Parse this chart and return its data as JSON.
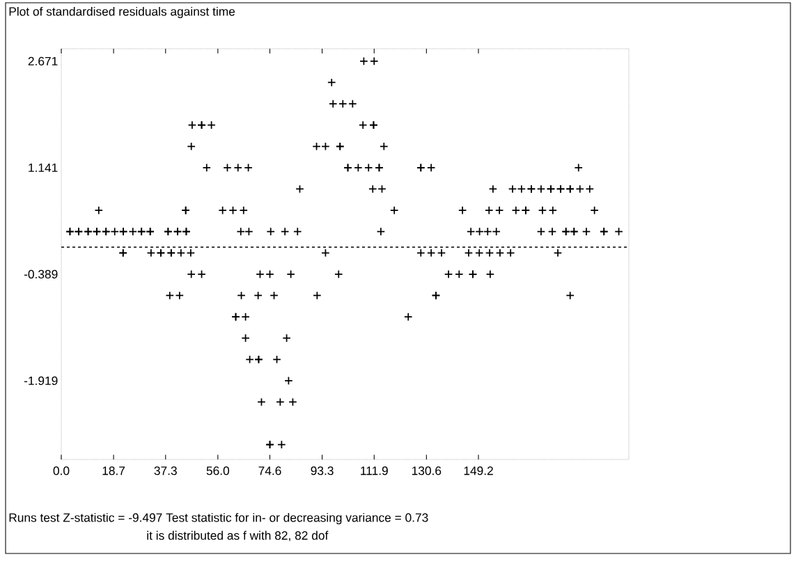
{
  "chart_data": {
    "type": "scatter",
    "title": "Plot of standardised residuals against time",
    "annotations": [
      "Runs test Z-statistic = -9.497  Test statistic for in- or decreasing variance =  0.73",
      "it is distributed as f with 82, 82 dof"
    ],
    "marker": "cross",
    "xlim": [
      0,
      203
    ],
    "ylim": [
      -3.05,
      2.85
    ],
    "xticks": [
      {
        "value": 0,
        "label": "0.0"
      },
      18.7,
      37.3,
      {
        "value": 56.0,
        "label": "56.0"
      },
      74.6,
      93.3,
      111.9,
      130.6,
      149.2
    ],
    "yticks": [
      2.671,
      1.141,
      -0.389,
      -1.919
    ],
    "ref_lines": [
      {
        "axis": "y",
        "value": 0,
        "line_style": "dashed"
      }
    ],
    "series": [
      {
        "color": "#000000",
        "x": [
          108.2,
          111.9,
          96.7,
          97.2,
          100.7,
          104.2,
          46.8,
          50.2,
          50.2,
          53.7,
          107.9,
          111.7,
          111.7,
          46.5,
          91.3,
          94.5,
          99.7,
          99.7,
          115.4,
          52.0,
          59.4,
          63.2,
          66.9,
          102.5,
          102.5,
          106.2,
          109.9,
          113.7,
          113.7,
          128.6,
          128.6,
          132.3,
          185.0,
          85.3,
          111.4,
          114.7,
          154.4,
          161.4,
          164.6,
          168.1,
          168.1,
          171.6,
          175.1,
          175.1,
          178.6,
          178.6,
          182.0,
          182.0,
          185.5,
          189.0,
          13.4,
          44.5,
          44.5,
          57.7,
          61.4,
          65.2,
          119.1,
          143.5,
          153.0,
          156.7,
          162.6,
          166.1,
          166.1,
          172.1,
          175.8,
          190.7,
          3.1,
          3.1,
          6.2,
          6.2,
          9.6,
          9.6,
          12.7,
          12.7,
          16.0,
          16.0,
          19.1,
          22.2,
          22.2,
          25.6,
          28.7,
          28.7,
          31.8,
          31.8,
          38.2,
          38.2,
          41.6,
          41.6,
          44.7,
          44.7,
          64.2,
          67.1,
          74.9,
          80.0,
          84.5,
          114.3,
          146.5,
          149.6,
          152.5,
          155.6,
          171.6,
          175.6,
          180.5,
          180.5,
          183.4,
          183.4,
          187.8,
          194.1,
          194.1,
          199.4,
          22.1,
          22.1,
          32.1,
          35.6,
          35.6,
          39.3,
          39.3,
          42.8,
          46.3,
          94.5,
          128.6,
          132.3,
          136.0,
          145.7,
          149.5,
          153.2,
          156.9,
          160.7,
          177.6,
          46.5,
          50.2,
          71.1,
          74.6,
          82.1,
          99.2,
          138.5,
          142.3,
          147.2,
          147.2,
          153.4,
          38.8,
          42.3,
          64.4,
          70.4,
          76.1,
          91.5,
          134.0,
          134.0,
          182.0,
          62.4,
          62.4,
          65.9,
          124.1,
          65.9,
          80.6,
          67.4,
          70.6,
          70.6,
          77.1,
          81.3,
          71.6,
          78.3,
          82.8,
          74.6,
          74.6,
          78.8
        ],
        "values": [
          2.671,
          2.671,
          2.365,
          2.059,
          2.059,
          2.059,
          1.753,
          1.753,
          1.753,
          1.753,
          1.753,
          1.753,
          1.753,
          1.447,
          1.447,
          1.447,
          1.447,
          1.447,
          1.447,
          1.141,
          1.141,
          1.141,
          1.141,
          1.141,
          1.141,
          1.141,
          1.141,
          1.141,
          1.141,
          1.141,
          1.141,
          1.141,
          1.141,
          0.835,
          0.835,
          0.835,
          0.835,
          0.835,
          0.835,
          0.835,
          0.835,
          0.835,
          0.835,
          0.835,
          0.835,
          0.835,
          0.835,
          0.835,
          0.835,
          0.835,
          0.529,
          0.529,
          0.529,
          0.529,
          0.529,
          0.529,
          0.529,
          0.529,
          0.529,
          0.529,
          0.529,
          0.529,
          0.529,
          0.529,
          0.529,
          0.529,
          0.223,
          0.223,
          0.223,
          0.223,
          0.223,
          0.223,
          0.223,
          0.223,
          0.223,
          0.223,
          0.223,
          0.223,
          0.223,
          0.223,
          0.223,
          0.223,
          0.223,
          0.223,
          0.223,
          0.223,
          0.223,
          0.223,
          0.223,
          0.223,
          0.223,
          0.223,
          0.223,
          0.223,
          0.223,
          0.223,
          0.223,
          0.223,
          0.223,
          0.223,
          0.223,
          0.223,
          0.223,
          0.223,
          0.223,
          0.223,
          0.223,
          0.223,
          0.223,
          0.223,
          -0.083,
          -0.083,
          -0.083,
          -0.083,
          -0.083,
          -0.083,
          -0.083,
          -0.083,
          -0.083,
          -0.083,
          -0.083,
          -0.083,
          -0.083,
          -0.083,
          -0.083,
          -0.083,
          -0.083,
          -0.083,
          -0.083,
          -0.389,
          -0.389,
          -0.389,
          -0.389,
          -0.389,
          -0.389,
          -0.389,
          -0.389,
          -0.389,
          -0.389,
          -0.389,
          -0.695,
          -0.695,
          -0.695,
          -0.695,
          -0.695,
          -0.695,
          -0.695,
          -0.695,
          -0.695,
          -1.001,
          -1.001,
          -1.001,
          -1.001,
          -1.307,
          -1.307,
          -1.613,
          -1.613,
          -1.613,
          -1.613,
          -1.919,
          -2.225,
          -2.225,
          -2.225,
          -2.837,
          -2.837,
          -2.837
        ]
      }
    ]
  }
}
